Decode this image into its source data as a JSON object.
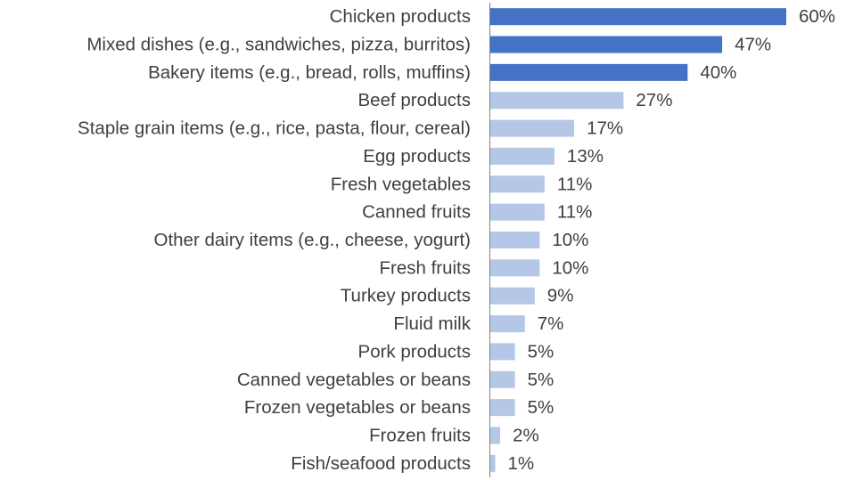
{
  "chart_data": {
    "type": "bar",
    "orientation": "horizontal",
    "title": "",
    "xlabel": "",
    "ylabel": "",
    "xlim": [
      0,
      60
    ],
    "grid": false,
    "legend": "none",
    "value_suffix": "%",
    "colors": {
      "highlight": "#4472C4",
      "normal": "#B4C7E7",
      "axis": "#808080"
    },
    "highlight_count": 3,
    "categories": [
      "Chicken products",
      "Mixed dishes (e.g., sandwiches, pizza, burritos)",
      "Bakery items (e.g., bread, rolls, muffins)",
      "Beef products",
      "Staple grain items (e.g., rice, pasta, flour, cereal)",
      "Egg products",
      "Fresh vegetables",
      "Canned fruits",
      "Other dairy items (e.g., cheese, yogurt)",
      "Fresh fruits",
      "Turkey products",
      "Fluid milk",
      "Pork products",
      "Canned vegetables or beans",
      "Frozen vegetables or beans",
      "Frozen fruits",
      "Fish/seafood products"
    ],
    "values": [
      60,
      47,
      40,
      27,
      17,
      13,
      11,
      11,
      10,
      10,
      9,
      7,
      5,
      5,
      5,
      2,
      1
    ]
  }
}
